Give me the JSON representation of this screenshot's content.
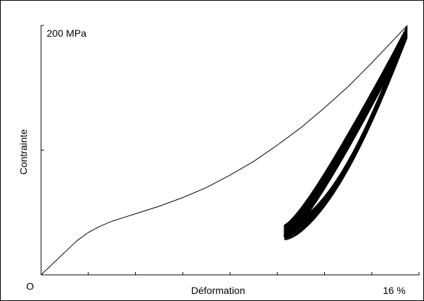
{
  "chart_data": {
    "type": "line",
    "title": "",
    "xlabel": "Déformation",
    "ylabel": "Contrainte",
    "origin_label": "O",
    "x_max_label": "16 %",
    "y_max_label": "200 MPa",
    "x_unit": "%",
    "y_unit": "MPa",
    "xlim": [
      0,
      16
    ],
    "ylim": [
      0,
      200
    ],
    "x_ticks": [
      0,
      2,
      4,
      6,
      8,
      10,
      12,
      14,
      16
    ],
    "y_ticks": [
      100,
      200
    ],
    "grid": false,
    "legend": "none",
    "loading_curve": {
      "x": [
        0,
        0.5,
        1.0,
        1.5,
        2.0,
        2.5,
        3.0,
        3.5,
        4.0,
        5.0,
        6.0,
        7.0,
        8.0,
        9.0,
        10.0,
        11.0,
        12.0,
        13.0,
        14.0,
        14.8,
        15.5
      ],
      "y": [
        0,
        9,
        18,
        27,
        34,
        39,
        43,
        46,
        49,
        55,
        62,
        70,
        80,
        91,
        104,
        118,
        134,
        151,
        170,
        186,
        200
      ]
    },
    "cycles": {
      "count": 22,
      "x_min": 10.3,
      "x_max": 15.5,
      "first_min_stress": 40,
      "last_min_stress": 28,
      "first_max_stress": 200,
      "last_max_stress": 190,
      "loop_width_stress": 22
    }
  }
}
